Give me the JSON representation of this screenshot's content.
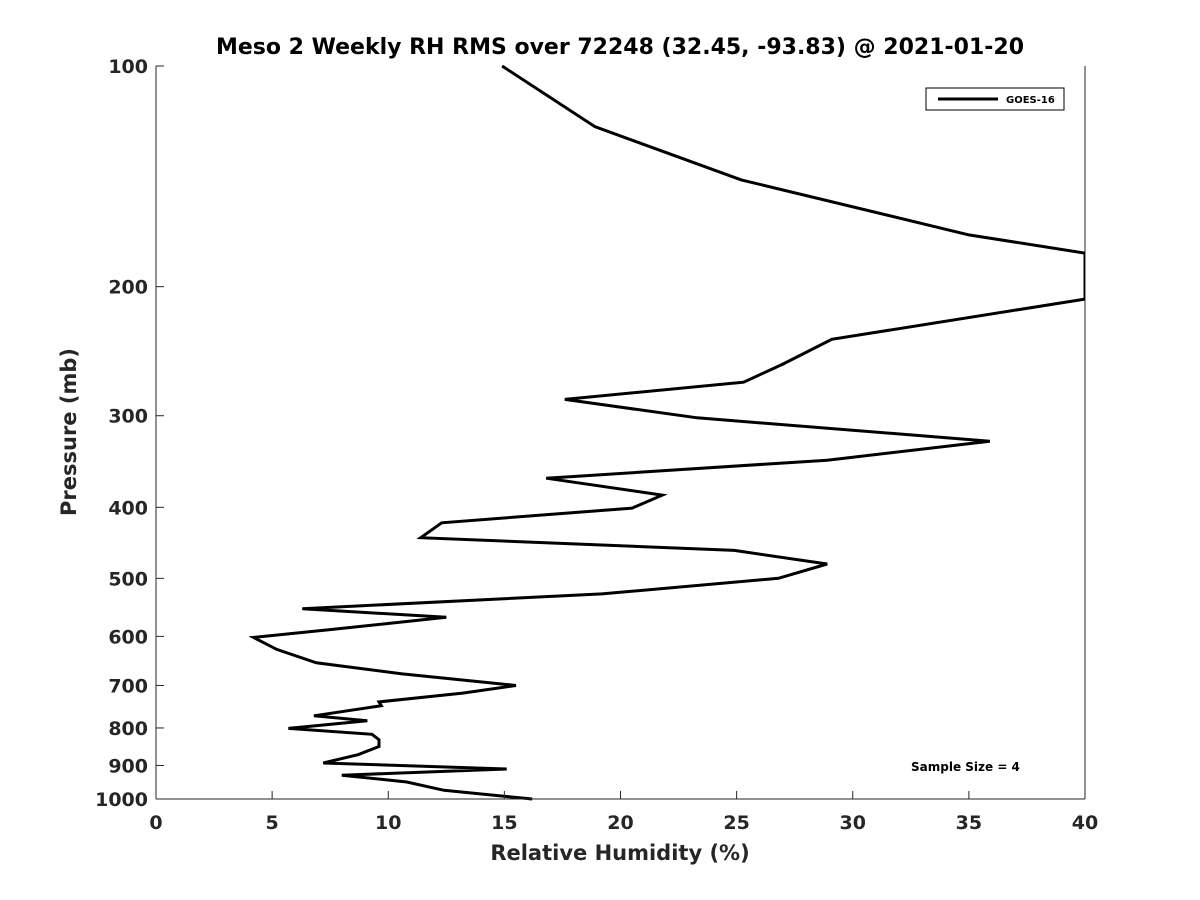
{
  "chart_data": {
    "type": "line",
    "title": "Meso 2 Weekly RH RMS over 72248 (32.45, -93.83) @ 2021-01-20",
    "xlabel": "Relative Humidity (%)",
    "ylabel": "Pressure (mb)",
    "xlim": [
      0,
      40
    ],
    "ylim": [
      1000,
      100
    ],
    "y_scale": "log",
    "y_reversed": true,
    "grid": false,
    "legend_position": "top-right",
    "x_ticks": [
      "0",
      "5",
      "10",
      "15",
      "20",
      "25",
      "30",
      "35",
      "40"
    ],
    "y_ticks": [
      "100",
      "200",
      "300",
      "400",
      "500",
      "600",
      "700",
      "800",
      "900",
      "1000"
    ],
    "series": [
      {
        "name": "GOES-16",
        "color": "#000000",
        "x": [
          14.9,
          18.9,
          25.2,
          35.0,
          40.0,
          40.0,
          29.1,
          27.0,
          25.3,
          17.6,
          23.3,
          35.9,
          28.9,
          16.8,
          21.8,
          20.5,
          12.3,
          11.4,
          24.9,
          28.9,
          26.8,
          19.2,
          6.3,
          12.5,
          7.6,
          4.2,
          5.2,
          6.9,
          10.6,
          15.5,
          13.2,
          9.6,
          9.7,
          6.8,
          9.1,
          5.7,
          9.3,
          9.6,
          9.6,
          8.7,
          7.2,
          15.1,
          8.0,
          10.8,
          12.4,
          16.2
        ],
        "y": [
          100,
          121,
          143,
          170,
          180,
          208,
          236,
          255,
          270,
          285,
          302,
          325,
          345,
          365,
          385,
          401,
          420,
          440,
          458,
          478,
          500,
          525,
          550,
          565,
          587,
          602,
          625,
          652,
          675,
          700,
          717,
          737,
          746,
          770,
          782,
          801,
          816,
          830,
          848,
          870,
          893,
          910,
          928,
          948,
          973,
          1000
        ]
      }
    ]
  },
  "legend": {
    "entries": [
      "GOES-16"
    ]
  },
  "annotations": {
    "sample_size": "Sample Size = 4"
  }
}
